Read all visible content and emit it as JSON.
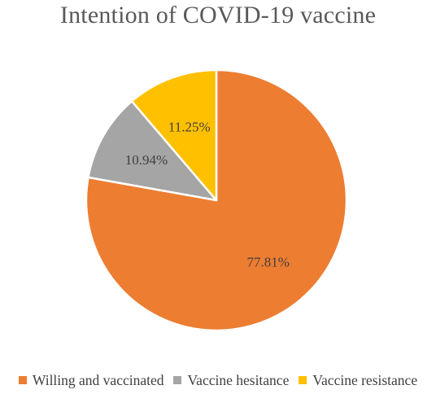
{
  "chart_data": {
    "type": "pie",
    "title": "Intention of COVID-19 vaccine",
    "categories": [
      "Willing and vaccinated",
      "Vaccine hesitance",
      "Vaccine resistance"
    ],
    "values": [
      77.81,
      10.94,
      11.25
    ],
    "labels": [
      "77.81%",
      "10.94%",
      "11.25%"
    ],
    "colors": [
      "#ED7D31",
      "#A5A5A5",
      "#FFC000"
    ],
    "legend_position": "bottom",
    "start_angle": "12 o'clock, clockwise"
  }
}
